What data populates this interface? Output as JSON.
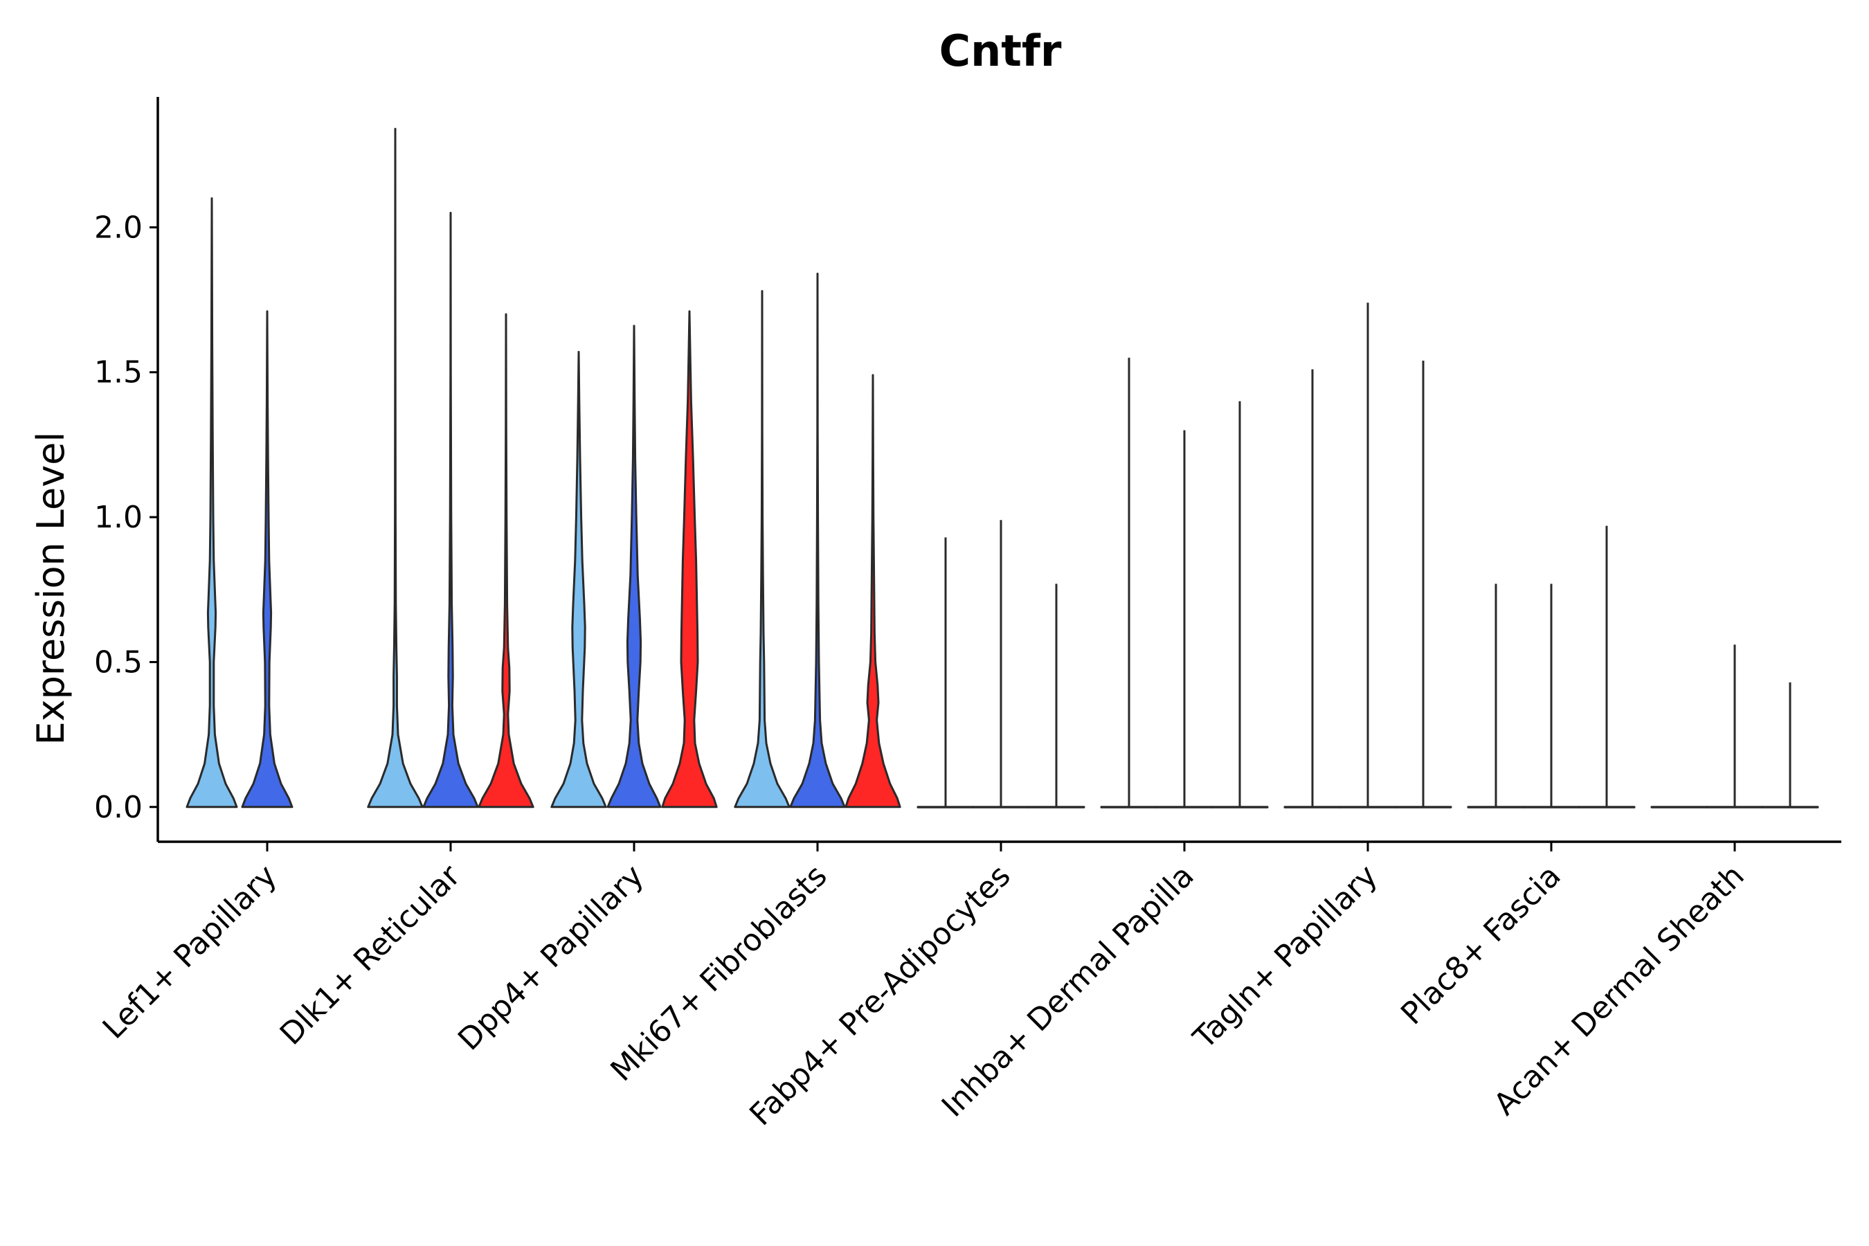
{
  "chart_data": {
    "type": "violin",
    "title": "Cntfr",
    "xlabel": "",
    "ylabel": "Expression Level",
    "ylim": [
      -0.12,
      2.45
    ],
    "yticks": [
      0.0,
      0.5,
      1.0,
      1.5,
      2.0
    ],
    "ytick_labels": [
      "0.0",
      "0.5",
      "1.0",
      "1.5",
      "2.0"
    ],
    "categories": [
      "Lef1+ Papillary",
      "Dlk1+ Reticular",
      "Dpp4+ Papillary",
      "Mki67+ Fibroblasts",
      "Fabp4+ Pre-Adipocytes",
      "Inhba+ Dermal Papilla",
      "Tagln+ Papillary",
      "Plac8+ Fascia",
      "Acan+ Dermal Sheath"
    ],
    "groups": [
      {
        "name": "group1",
        "color": "#7DBFEE"
      },
      {
        "name": "group2",
        "color": "#4169E8"
      },
      {
        "name": "group3",
        "color": "#FF2626"
      }
    ],
    "violins": [
      {
        "category": "Lef1+ Papillary",
        "group": "group1",
        "max": 2.1,
        "profile": [
          [
            0.0,
            0.9
          ],
          [
            0.03,
            0.78
          ],
          [
            0.08,
            0.5
          ],
          [
            0.15,
            0.26
          ],
          [
            0.25,
            0.11
          ],
          [
            0.35,
            0.07
          ],
          [
            0.5,
            0.07
          ],
          [
            0.62,
            0.13
          ],
          [
            0.67,
            0.14
          ],
          [
            0.72,
            0.12
          ],
          [
            0.85,
            0.07
          ],
          [
            1.0,
            0.05
          ],
          [
            1.3,
            0.03
          ],
          [
            1.6,
            0.015
          ],
          [
            2.1,
            0.0
          ]
        ]
      },
      {
        "category": "Lef1+ Papillary",
        "group": "group2",
        "max": 1.71,
        "profile": [
          [
            0.0,
            0.9
          ],
          [
            0.03,
            0.78
          ],
          [
            0.08,
            0.5
          ],
          [
            0.15,
            0.26
          ],
          [
            0.25,
            0.11
          ],
          [
            0.35,
            0.07
          ],
          [
            0.5,
            0.08
          ],
          [
            0.62,
            0.13
          ],
          [
            0.67,
            0.14
          ],
          [
            0.72,
            0.12
          ],
          [
            0.85,
            0.07
          ],
          [
            1.0,
            0.05
          ],
          [
            1.2,
            0.03
          ],
          [
            1.4,
            0.015
          ],
          [
            1.71,
            0.0
          ]
        ]
      },
      {
        "category": "Dlk1+ Reticular",
        "group": "group1",
        "max": 2.34,
        "profile": [
          [
            0.0,
            0.98
          ],
          [
            0.03,
            0.85
          ],
          [
            0.08,
            0.55
          ],
          [
            0.15,
            0.28
          ],
          [
            0.25,
            0.1
          ],
          [
            0.35,
            0.06
          ],
          [
            0.45,
            0.06
          ],
          [
            0.55,
            0.04
          ],
          [
            0.7,
            0.02
          ],
          [
            1.0,
            0.01
          ],
          [
            1.5,
            0.004
          ],
          [
            2.34,
            0.0
          ]
        ]
      },
      {
        "category": "Dlk1+ Reticular",
        "group": "group2",
        "max": 2.05,
        "profile": [
          [
            0.0,
            0.98
          ],
          [
            0.03,
            0.85
          ],
          [
            0.08,
            0.55
          ],
          [
            0.15,
            0.28
          ],
          [
            0.25,
            0.1
          ],
          [
            0.35,
            0.06
          ],
          [
            0.45,
            0.08
          ],
          [
            0.55,
            0.07
          ],
          [
            0.7,
            0.04
          ],
          [
            1.0,
            0.02
          ],
          [
            1.5,
            0.006
          ],
          [
            2.05,
            0.0
          ]
        ]
      },
      {
        "category": "Dlk1+ Reticular",
        "group": "group3",
        "max": 1.7,
        "profile": [
          [
            0.0,
            0.98
          ],
          [
            0.03,
            0.85
          ],
          [
            0.08,
            0.55
          ],
          [
            0.15,
            0.28
          ],
          [
            0.25,
            0.1
          ],
          [
            0.32,
            0.07
          ],
          [
            0.4,
            0.13
          ],
          [
            0.48,
            0.12
          ],
          [
            0.55,
            0.07
          ],
          [
            0.7,
            0.04
          ],
          [
            1.0,
            0.02
          ],
          [
            1.3,
            0.008
          ],
          [
            1.7,
            0.0
          ]
        ]
      },
      {
        "category": "Dpp4+ Papillary",
        "group": "group1",
        "max": 1.57,
        "profile": [
          [
            0.0,
            0.98
          ],
          [
            0.03,
            0.85
          ],
          [
            0.08,
            0.55
          ],
          [
            0.15,
            0.3
          ],
          [
            0.22,
            0.17
          ],
          [
            0.3,
            0.12
          ],
          [
            0.4,
            0.15
          ],
          [
            0.55,
            0.22
          ],
          [
            0.62,
            0.23
          ],
          [
            0.7,
            0.2
          ],
          [
            0.85,
            0.13
          ],
          [
            1.0,
            0.09
          ],
          [
            1.2,
            0.05
          ],
          [
            1.4,
            0.02
          ],
          [
            1.57,
            0.0
          ]
        ]
      },
      {
        "category": "Dpp4+ Papillary",
        "group": "group2",
        "max": 1.66,
        "profile": [
          [
            0.0,
            0.95
          ],
          [
            0.03,
            0.82
          ],
          [
            0.08,
            0.55
          ],
          [
            0.15,
            0.3
          ],
          [
            0.22,
            0.17
          ],
          [
            0.3,
            0.12
          ],
          [
            0.4,
            0.17
          ],
          [
            0.5,
            0.23
          ],
          [
            0.57,
            0.24
          ],
          [
            0.65,
            0.21
          ],
          [
            0.8,
            0.13
          ],
          [
            1.0,
            0.08
          ],
          [
            1.2,
            0.04
          ],
          [
            1.4,
            0.02
          ],
          [
            1.66,
            0.0
          ]
        ]
      },
      {
        "category": "Dpp4+ Papillary",
        "group": "group3",
        "max": 1.71,
        "profile": [
          [
            0.0,
            0.98
          ],
          [
            0.03,
            0.88
          ],
          [
            0.08,
            0.6
          ],
          [
            0.15,
            0.35
          ],
          [
            0.22,
            0.2
          ],
          [
            0.3,
            0.17
          ],
          [
            0.4,
            0.24
          ],
          [
            0.5,
            0.3
          ],
          [
            0.6,
            0.29
          ],
          [
            0.7,
            0.27
          ],
          [
            0.85,
            0.24
          ],
          [
            1.0,
            0.19
          ],
          [
            1.2,
            0.13
          ],
          [
            1.4,
            0.06
          ],
          [
            1.55,
            0.03
          ],
          [
            1.71,
            0.0
          ]
        ]
      },
      {
        "category": "Mki67+ Fibroblasts",
        "group": "group1",
        "max": 1.78,
        "profile": [
          [
            0.0,
            0.98
          ],
          [
            0.03,
            0.85
          ],
          [
            0.08,
            0.55
          ],
          [
            0.15,
            0.3
          ],
          [
            0.22,
            0.15
          ],
          [
            0.3,
            0.09
          ],
          [
            0.4,
            0.08
          ],
          [
            0.5,
            0.07
          ],
          [
            0.6,
            0.05
          ],
          [
            0.8,
            0.03
          ],
          [
            1.0,
            0.015
          ],
          [
            1.3,
            0.006
          ],
          [
            1.78,
            0.0
          ]
        ]
      },
      {
        "category": "Mki67+ Fibroblasts",
        "group": "group2",
        "max": 1.84,
        "profile": [
          [
            0.0,
            0.98
          ],
          [
            0.03,
            0.85
          ],
          [
            0.08,
            0.55
          ],
          [
            0.15,
            0.3
          ],
          [
            0.22,
            0.15
          ],
          [
            0.3,
            0.09
          ],
          [
            0.4,
            0.07
          ],
          [
            0.5,
            0.05
          ],
          [
            0.7,
            0.03
          ],
          [
            1.0,
            0.015
          ],
          [
            1.3,
            0.006
          ],
          [
            1.84,
            0.0
          ]
        ]
      },
      {
        "category": "Mki67+ Fibroblasts",
        "group": "group3",
        "max": 1.49,
        "profile": [
          [
            0.0,
            0.98
          ],
          [
            0.03,
            0.88
          ],
          [
            0.08,
            0.62
          ],
          [
            0.15,
            0.38
          ],
          [
            0.22,
            0.22
          ],
          [
            0.3,
            0.14
          ],
          [
            0.36,
            0.2
          ],
          [
            0.42,
            0.17
          ],
          [
            0.5,
            0.09
          ],
          [
            0.6,
            0.06
          ],
          [
            0.8,
            0.04
          ],
          [
            1.0,
            0.02
          ],
          [
            1.2,
            0.01
          ],
          [
            1.49,
            0.0
          ]
        ]
      },
      {
        "category": "Fabp4+ Pre-Adipocytes",
        "group": "group1",
        "max": 0.93,
        "profile": []
      },
      {
        "category": "Fabp4+ Pre-Adipocytes",
        "group": "group2",
        "max": 0.99,
        "profile": []
      },
      {
        "category": "Fabp4+ Pre-Adipocytes",
        "group": "group3",
        "max": 0.77,
        "profile": []
      },
      {
        "category": "Inhba+ Dermal Papilla",
        "group": "group1",
        "max": 1.55,
        "profile": []
      },
      {
        "category": "Inhba+ Dermal Papilla",
        "group": "group2",
        "max": 1.3,
        "profile": []
      },
      {
        "category": "Inhba+ Dermal Papilla",
        "group": "group3",
        "max": 1.4,
        "profile": []
      },
      {
        "category": "Tagln+ Papillary",
        "group": "group1",
        "max": 1.51,
        "profile": []
      },
      {
        "category": "Tagln+ Papillary",
        "group": "group2",
        "max": 1.74,
        "profile": []
      },
      {
        "category": "Tagln+ Papillary",
        "group": "group3",
        "max": 1.54,
        "profile": []
      },
      {
        "category": "Plac8+ Fascia",
        "group": "group1",
        "max": 0.77,
        "profile": []
      },
      {
        "category": "Plac8+ Fascia",
        "group": "group2",
        "max": 0.77,
        "profile": []
      },
      {
        "category": "Plac8+ Fascia",
        "group": "group3",
        "max": 0.97,
        "profile": []
      },
      {
        "category": "Acan+ Dermal Sheath",
        "group": "group1",
        "max": 0.0,
        "profile": []
      },
      {
        "category": "Acan+ Dermal Sheath",
        "group": "group2",
        "max": 0.56,
        "profile": []
      },
      {
        "category": "Acan+ Dermal Sheath",
        "group": "group3",
        "max": 0.43,
        "profile": []
      }
    ]
  }
}
